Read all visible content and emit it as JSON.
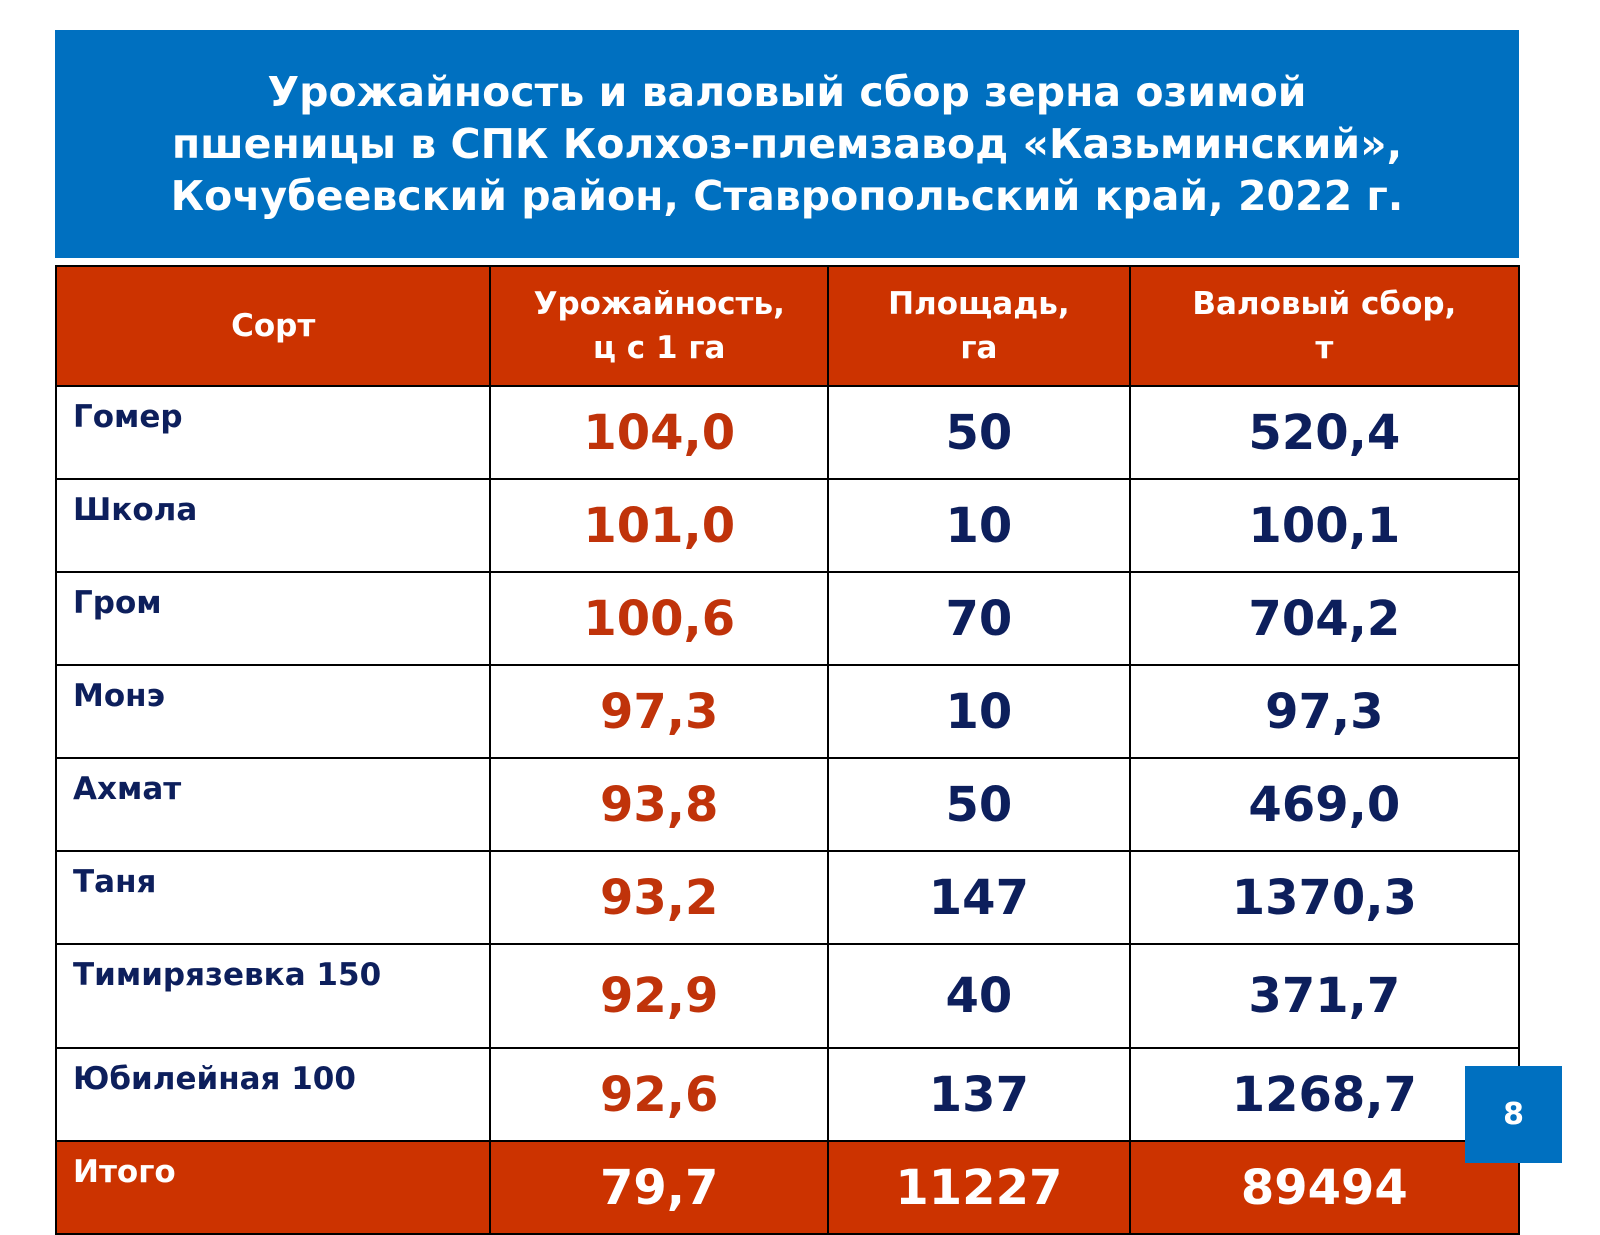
{
  "title": [
    "Урожайность и валовый сбор зерна озимой",
    "пшеницы в СПК Колхоз-племзавод «Казьминский»,",
    "Кочубеевский район, Ставропольский край, 2022 г."
  ],
  "table": {
    "headers": [
      "Сорт",
      "Урожайность, ц с 1 га",
      "Площадь, га",
      "Валовый сбор, т"
    ],
    "header_lines": [
      [
        "Сорт"
      ],
      [
        "Урожайность,",
        "ц с 1 га"
      ],
      [
        "Площадь,",
        "га"
      ],
      [
        "Валовый сбор,",
        "т"
      ]
    ],
    "rows": [
      [
        "Гомер",
        "104,0",
        "50",
        "520,4"
      ],
      [
        "Школа",
        "101,0",
        "10",
        "100,1"
      ],
      [
        "Гром",
        "100,6",
        "70",
        "704,2"
      ],
      [
        "Монэ",
        "97,3",
        "10",
        "97,3"
      ],
      [
        "Ахмат",
        "93,8",
        "50",
        "469,0"
      ],
      [
        "Таня",
        "93,2",
        "147",
        "1370,3"
      ],
      [
        "Тимирязевка 150",
        "92,9",
        "40",
        "371,7"
      ],
      [
        "Юбилейная 100",
        "92,6",
        "137",
        "1268,7"
      ]
    ],
    "total": [
      "Итого",
      "79,7",
      "11227",
      "89494"
    ]
  },
  "page_number": "8",
  "colors": {
    "banner": "#0070c0",
    "header": "#cc3300",
    "yield_text": "#c0330a",
    "value_text": "#0d1f5c"
  }
}
